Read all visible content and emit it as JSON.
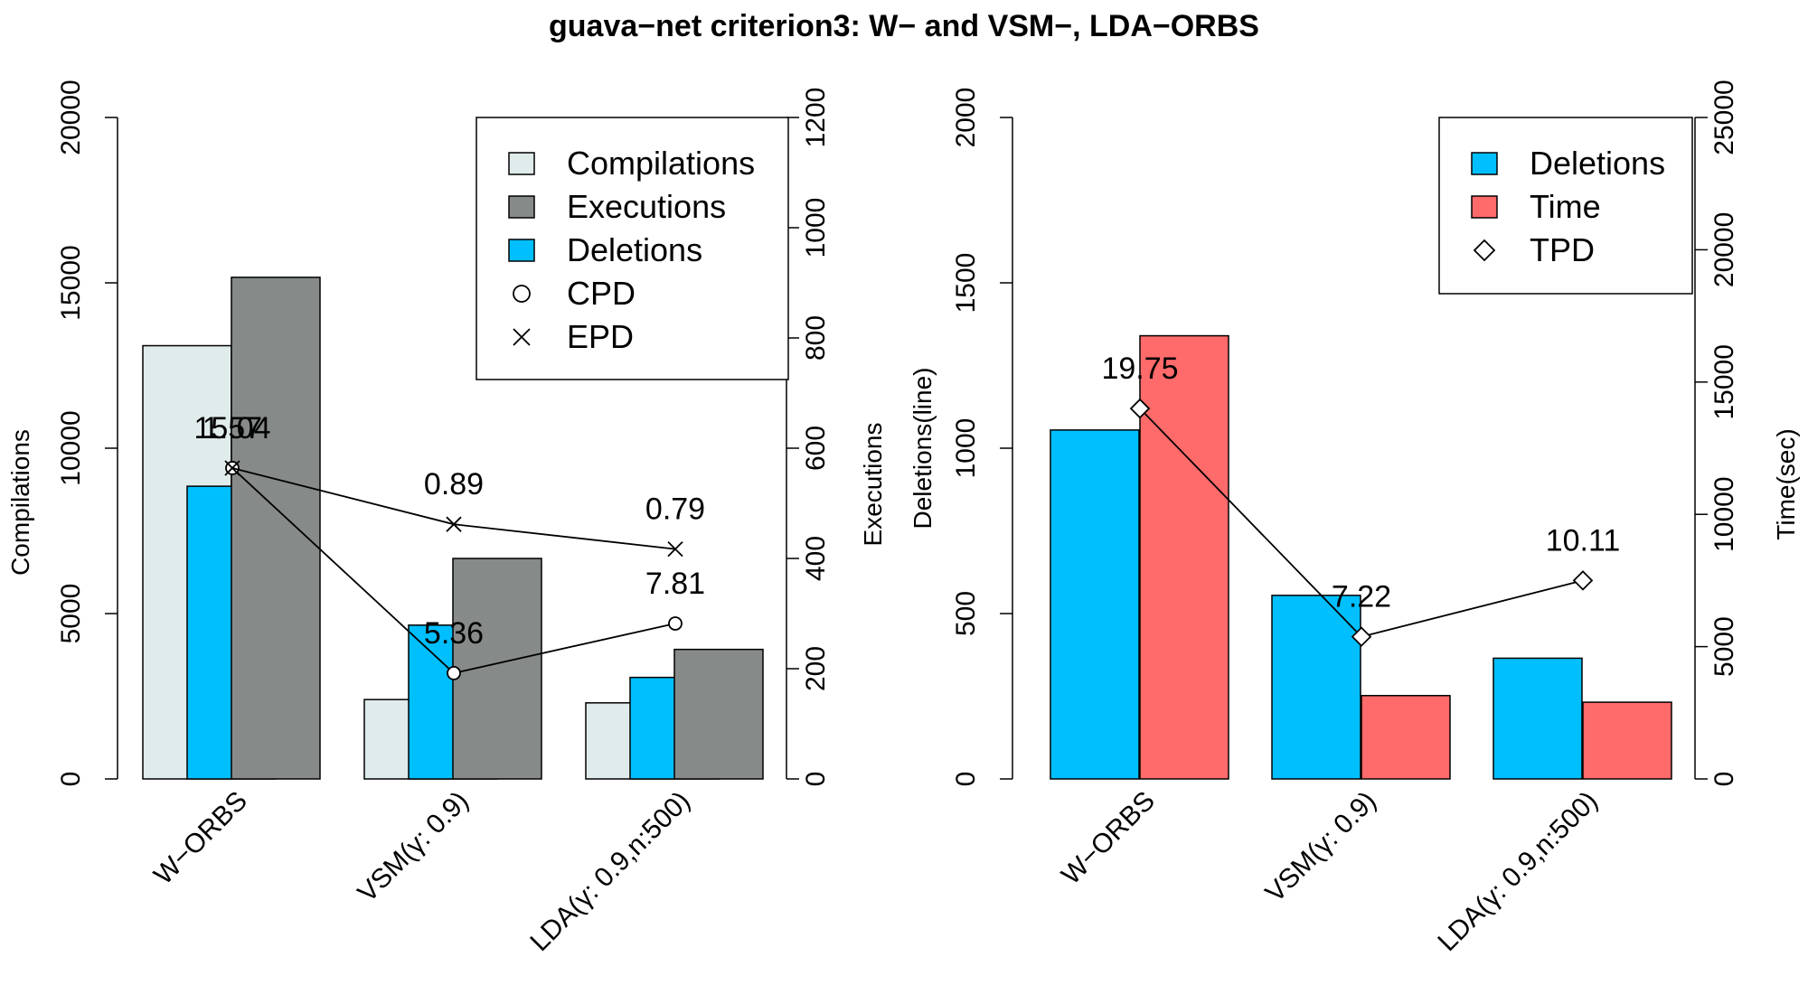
{
  "chart_data": {
    "title": "guava−net criterion3: W− and VSM−, LDA−ORBS",
    "panels": [
      {
        "type": "bar",
        "categories": [
          "W−ORBS",
          "VSM(γ: 0.9)",
          "LDA(γ: 0.9,n:500)"
        ],
        "left_axis": {
          "label": "Compilations",
          "ylim": [
            0,
            20000
          ],
          "ticks": [
            "0",
            "5000",
            "10000",
            "15000",
            "20000"
          ]
        },
        "right_axis": {
          "label": "Executions",
          "ylim": [
            0,
            1200
          ],
          "ticks": [
            "0",
            "200",
            "400",
            "600",
            "800",
            "1000",
            "1200"
          ]
        },
        "series": [
          {
            "name": "Compilations",
            "axis": "left",
            "color": "#e0ebeb",
            "values": [
              13100,
              2400,
              2300
            ]
          },
          {
            "name": "Executions",
            "axis": "right",
            "color": "#868a89",
            "values": [
              910,
              400,
              235
            ]
          },
          {
            "name": "Deletions",
            "axis": "left",
            "color": "#00bfff",
            "values": [
              8850,
              4650,
              3070
            ]
          }
        ],
        "lines": [
          {
            "name": "CPD",
            "marker": "circle",
            "axis": "left",
            "values": [
              9400,
              3200,
              4700
            ],
            "labels": [
              "15.04",
              "5.36",
              "7.81"
            ]
          },
          {
            "name": "EPD",
            "marker": "cross",
            "axis": "left",
            "values": [
              9400,
              7700,
              6950
            ],
            "labels": [
              "1.57",
              "0.89",
              "0.79"
            ]
          }
        ],
        "legend": {
          "position": "top-right",
          "entries": [
            {
              "label": "Compilations",
              "kind": "box",
              "color": "#e0ebeb"
            },
            {
              "label": "Executions",
              "kind": "box",
              "color": "#868a89"
            },
            {
              "label": "Deletions",
              "kind": "box",
              "color": "#00bfff"
            },
            {
              "label": "CPD",
              "kind": "circle"
            },
            {
              "label": "EPD",
              "kind": "cross"
            }
          ]
        }
      },
      {
        "type": "bar",
        "categories": [
          "W−ORBS",
          "VSM(γ: 0.9)",
          "LDA(γ: 0.9,n:500)"
        ],
        "left_axis": {
          "label": "Deletions(line)",
          "ylim": [
            0,
            2000
          ],
          "ticks": [
            "0",
            "500",
            "1000",
            "1500",
            "2000"
          ]
        },
        "right_axis": {
          "label": "Time(sec)",
          "ylim": [
            0,
            25000
          ],
          "ticks": [
            "0",
            "5000",
            "10000",
            "15000",
            "20000",
            "25000"
          ]
        },
        "series": [
          {
            "name": "Deletions",
            "axis": "left",
            "color": "#00bfff",
            "values": [
              1055,
              555,
              365
            ]
          },
          {
            "name": "Time",
            "axis": "right",
            "color": "#ff6a6a",
            "values": [
              16750,
              3150,
              2900
            ]
          }
        ],
        "lines": [
          {
            "name": "TPD",
            "marker": "diamond",
            "axis": "left",
            "values": [
              1120,
              430,
              600
            ],
            "labels": [
              "19.75",
              "7.22",
              "10.11"
            ]
          }
        ],
        "legend": {
          "position": "top-right",
          "entries": [
            {
              "label": "Deletions",
              "kind": "box",
              "color": "#00bfff"
            },
            {
              "label": "Time",
              "kind": "box",
              "color": "#ff6a6a"
            },
            {
              "label": "TPD",
              "kind": "diamond"
            }
          ]
        }
      }
    ]
  }
}
